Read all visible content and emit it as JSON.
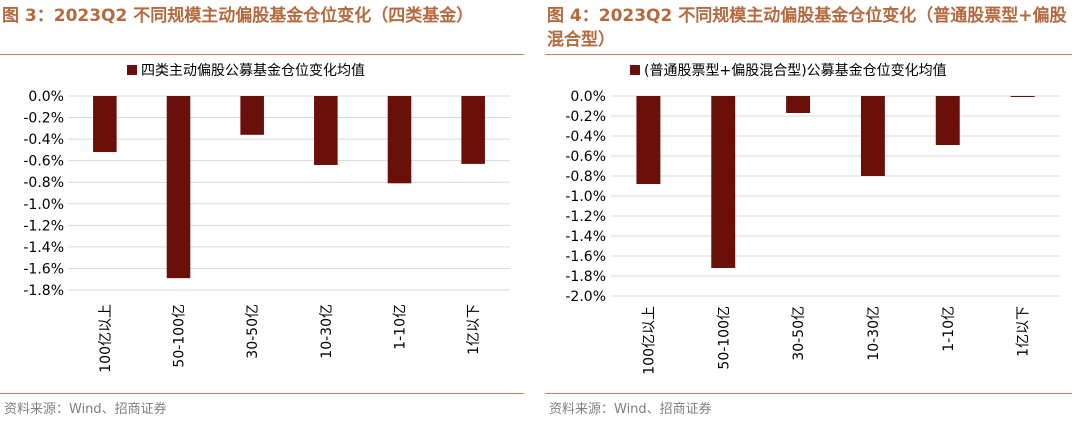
{
  "figures": [
    {
      "title": "图 3：2023Q2 不同规模主动偏股基金仓位变化（四类基金）",
      "source": "资料来源：Wind、招商证券"
    },
    {
      "title": "图 4：2023Q2 不同规模主动偏股基金仓位变化（普通股票型+偏股混合型）",
      "source": "资料来源：Wind、招商证券"
    }
  ],
  "chart_data": [
    {
      "type": "bar",
      "categories": [
        "100亿以上",
        "50-100亿",
        "30-50亿",
        "10-30亿",
        "1-10亿",
        "1亿以下"
      ],
      "series": [
        {
          "name": "四类主动偏股公募基金仓位变化均值",
          "values": [
            -0.52,
            -1.69,
            -0.36,
            -0.64,
            -0.81,
            -0.63
          ]
        }
      ],
      "ylim": [
        -1.8,
        0.0
      ],
      "yticks": [
        0.0,
        -0.2,
        -0.4,
        -0.6,
        -0.8,
        -1.0,
        -1.2,
        -1.4,
        -1.6,
        -1.8
      ],
      "ytick_labels": [
        "0.0%",
        "-0.2%",
        "-0.4%",
        "-0.6%",
        "-0.8%",
        "-1.0%",
        "-1.2%",
        "-1.4%",
        "-1.6%",
        "-1.8%"
      ],
      "unit": "%",
      "color": "#6b0f0a",
      "grid": true,
      "legend": "top"
    },
    {
      "type": "bar",
      "categories": [
        "100亿以上",
        "50-100亿",
        "30-50亿",
        "10-30亿",
        "1-10亿",
        "1亿以下"
      ],
      "series": [
        {
          "name": "(普通股票型+偏股混合型)公募基金仓位变化均值",
          "values": [
            -0.88,
            -1.72,
            -0.17,
            -0.8,
            -0.49,
            -0.01
          ]
        }
      ],
      "ylim": [
        -2.0,
        0.0
      ],
      "yticks": [
        0.0,
        -0.2,
        -0.4,
        -0.6,
        -0.8,
        -1.0,
        -1.2,
        -1.4,
        -1.6,
        -1.8,
        -2.0
      ],
      "ytick_labels": [
        "0.0%",
        "-0.2%",
        "-0.4%",
        "-0.6%",
        "-0.8%",
        "-1.0%",
        "-1.2%",
        "-1.4%",
        "-1.6%",
        "-1.8%",
        "-2.0%"
      ],
      "unit": "%",
      "color": "#6b0f0a",
      "grid": true,
      "legend": "top"
    }
  ]
}
